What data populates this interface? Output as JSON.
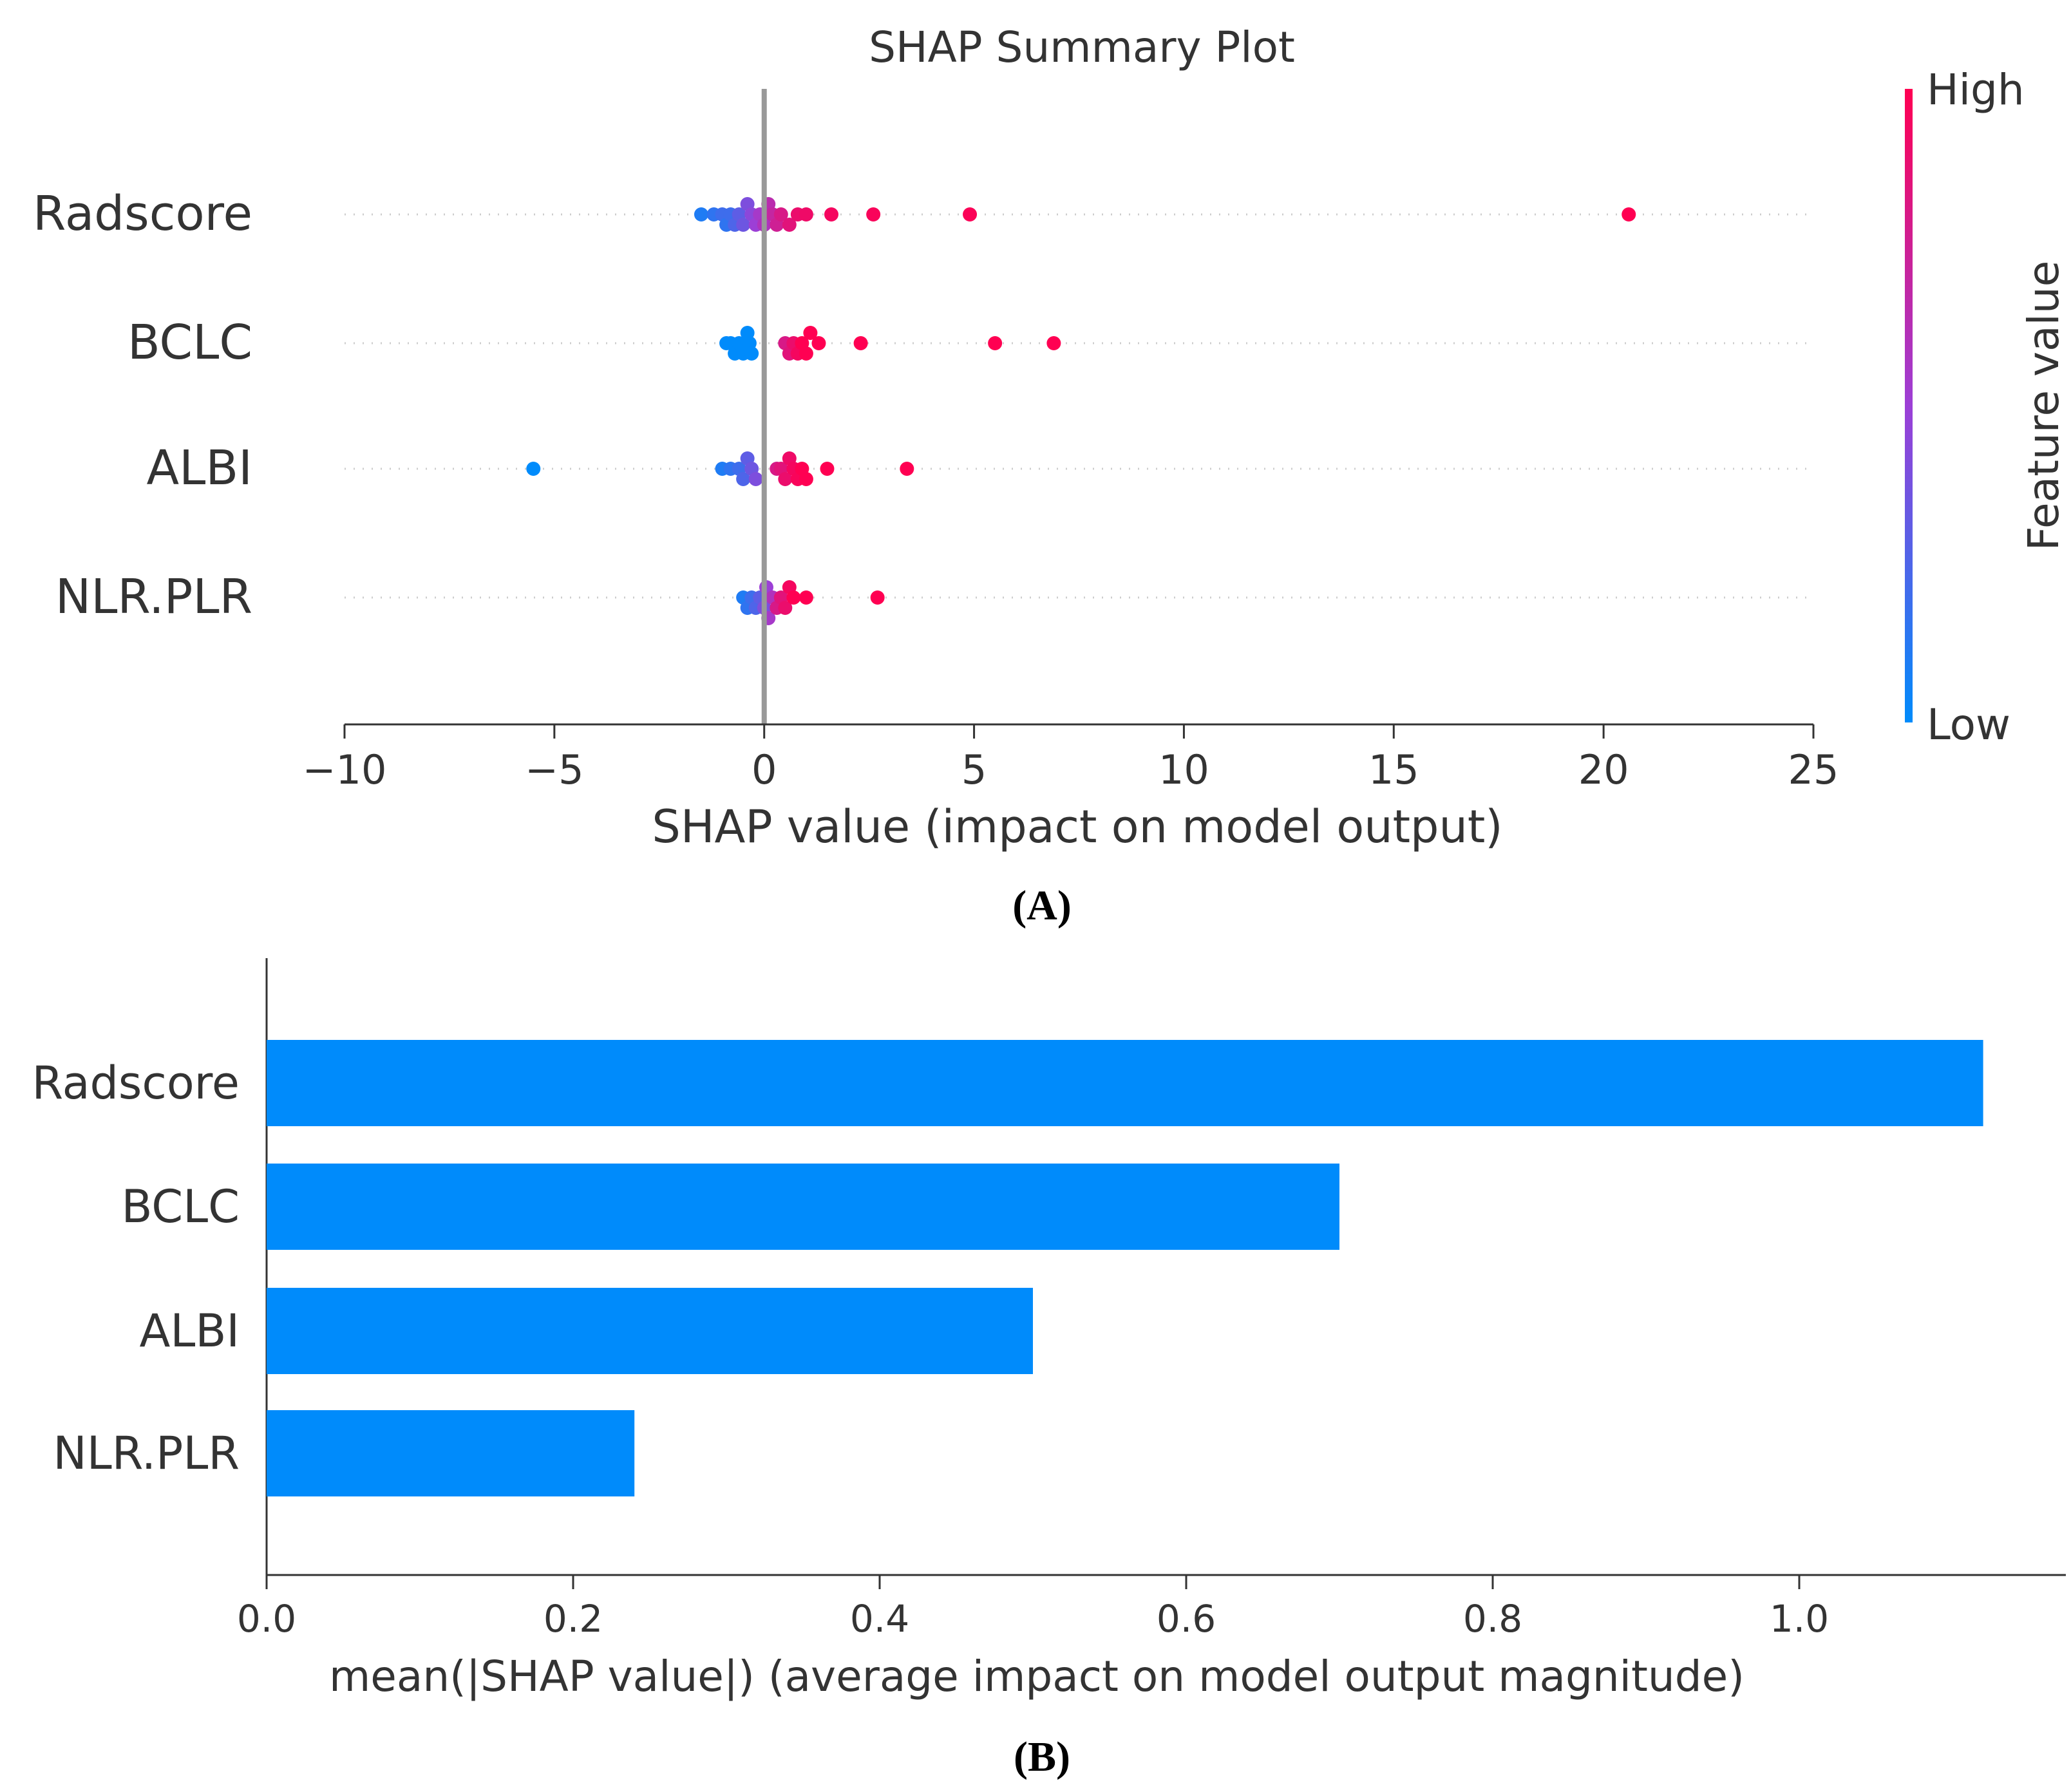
{
  "chart_data": [
    {
      "type": "scatter",
      "subtype": "beeswarm",
      "title": "SHAP Summary Plot",
      "panel_label": "(A)",
      "xlabel": "SHAP value (impact on model output)",
      "ylabel": "",
      "xlim": [
        -10,
        25
      ],
      "xticks": [
        -10,
        -5,
        0,
        5,
        10,
        15,
        20,
        25
      ],
      "xtick_labels": [
        "−10",
        "−5",
        "0",
        "5",
        "10",
        "15",
        "20",
        "25"
      ],
      "features": [
        "Radscore",
        "BCLC",
        "ALBI",
        "NLR.PLR"
      ],
      "colorbar": {
        "label": "Feature value",
        "high_label": "High",
        "low_label": "Low",
        "high_color": "#ff0052",
        "low_color": "#008bfb"
      },
      "series": [
        {
          "name": "Radscore",
          "points": [
            {
              "x": -1.5,
              "v": 0.1
            },
            {
              "x": -1.2,
              "v": 0.15
            },
            {
              "x": -1.0,
              "v": 0.2
            },
            {
              "x": -0.9,
              "v": 0.15
            },
            {
              "x": -0.8,
              "v": 0.2
            },
            {
              "x": -0.7,
              "v": 0.25
            },
            {
              "x": -0.6,
              "v": 0.3
            },
            {
              "x": -0.5,
              "v": 0.35
            },
            {
              "x": -0.4,
              "v": 0.4
            },
            {
              "x": -0.3,
              "v": 0.45
            },
            {
              "x": -0.2,
              "v": 0.5
            },
            {
              "x": -0.1,
              "v": 0.55
            },
            {
              "x": 0.0,
              "v": 0.6
            },
            {
              "x": 0.1,
              "v": 0.65
            },
            {
              "x": 0.2,
              "v": 0.7
            },
            {
              "x": 0.3,
              "v": 0.75
            },
            {
              "x": 0.4,
              "v": 0.8
            },
            {
              "x": 0.6,
              "v": 0.85
            },
            {
              "x": 0.8,
              "v": 0.9
            },
            {
              "x": 1.0,
              "v": 0.92
            },
            {
              "x": 1.6,
              "v": 0.95
            },
            {
              "x": 2.6,
              "v": 0.97
            },
            {
              "x": 4.9,
              "v": 0.98
            },
            {
              "x": 20.6,
              "v": 1.0
            }
          ]
        },
        {
          "name": "BCLC",
          "points": [
            {
              "x": -0.9,
              "v": 0.0
            },
            {
              "x": -0.8,
              "v": 0.0
            },
            {
              "x": -0.7,
              "v": 0.0
            },
            {
              "x": -0.6,
              "v": 0.0
            },
            {
              "x": -0.5,
              "v": 0.0
            },
            {
              "x": -0.4,
              "v": 0.0
            },
            {
              "x": -0.35,
              "v": 0.0
            },
            {
              "x": -0.3,
              "v": 0.0
            },
            {
              "x": 0.5,
              "v": 0.8
            },
            {
              "x": 0.6,
              "v": 0.85
            },
            {
              "x": 0.7,
              "v": 0.9
            },
            {
              "x": 0.8,
              "v": 0.95
            },
            {
              "x": 0.9,
              "v": 1.0
            },
            {
              "x": 1.0,
              "v": 1.0
            },
            {
              "x": 1.1,
              "v": 1.0
            },
            {
              "x": 1.3,
              "v": 1.0
            },
            {
              "x": 2.3,
              "v": 1.0
            },
            {
              "x": 5.5,
              "v": 1.0
            },
            {
              "x": 6.9,
              "v": 1.0
            }
          ]
        },
        {
          "name": "ALBI",
          "points": [
            {
              "x": -5.5,
              "v": 0.0
            },
            {
              "x": -1.0,
              "v": 0.1
            },
            {
              "x": -0.8,
              "v": 0.15
            },
            {
              "x": -0.6,
              "v": 0.2
            },
            {
              "x": -0.5,
              "v": 0.25
            },
            {
              "x": -0.4,
              "v": 0.3
            },
            {
              "x": -0.3,
              "v": 0.35
            },
            {
              "x": -0.2,
              "v": 0.4
            },
            {
              "x": 0.3,
              "v": 0.8
            },
            {
              "x": 0.4,
              "v": 0.85
            },
            {
              "x": 0.5,
              "v": 0.9
            },
            {
              "x": 0.6,
              "v": 0.92
            },
            {
              "x": 0.7,
              "v": 0.95
            },
            {
              "x": 0.8,
              "v": 0.97
            },
            {
              "x": 0.9,
              "v": 1.0
            },
            {
              "x": 1.0,
              "v": 1.0
            },
            {
              "x": 1.5,
              "v": 1.0
            },
            {
              "x": 3.4,
              "v": 1.0
            }
          ]
        },
        {
          "name": "NLR.PLR",
          "points": [
            {
              "x": -0.5,
              "v": 0.1
            },
            {
              "x": -0.4,
              "v": 0.15
            },
            {
              "x": -0.3,
              "v": 0.2
            },
            {
              "x": -0.2,
              "v": 0.25
            },
            {
              "x": -0.1,
              "v": 0.3
            },
            {
              "x": 0.0,
              "v": 0.4
            },
            {
              "x": 0.05,
              "v": 0.5
            },
            {
              "x": 0.1,
              "v": 0.55
            },
            {
              "x": 0.2,
              "v": 0.6
            },
            {
              "x": 0.3,
              "v": 0.8
            },
            {
              "x": 0.4,
              "v": 0.85
            },
            {
              "x": 0.5,
              "v": 0.9
            },
            {
              "x": 0.6,
              "v": 0.95
            },
            {
              "x": 0.7,
              "v": 1.0
            },
            {
              "x": 1.0,
              "v": 1.0
            },
            {
              "x": 2.7,
              "v": 1.0
            }
          ]
        }
      ]
    },
    {
      "type": "bar",
      "orientation": "horizontal",
      "panel_label": "(B)",
      "title": "",
      "xlabel": "mean(|SHAP value|) (average impact on model output magnitude)",
      "ylabel": "",
      "xlim": [
        0,
        1.17
      ],
      "xticks": [
        0.0,
        0.2,
        0.4,
        0.6,
        0.8,
        1.0
      ],
      "xtick_labels": [
        "0.0",
        "0.2",
        "0.4",
        "0.6",
        "0.8",
        "1.0"
      ],
      "categories": [
        "Radscore",
        "BCLC",
        "ALBI",
        "NLR.PLR"
      ],
      "values": [
        1.12,
        0.7,
        0.5,
        0.24
      ],
      "bar_color": "#008bfb"
    }
  ]
}
